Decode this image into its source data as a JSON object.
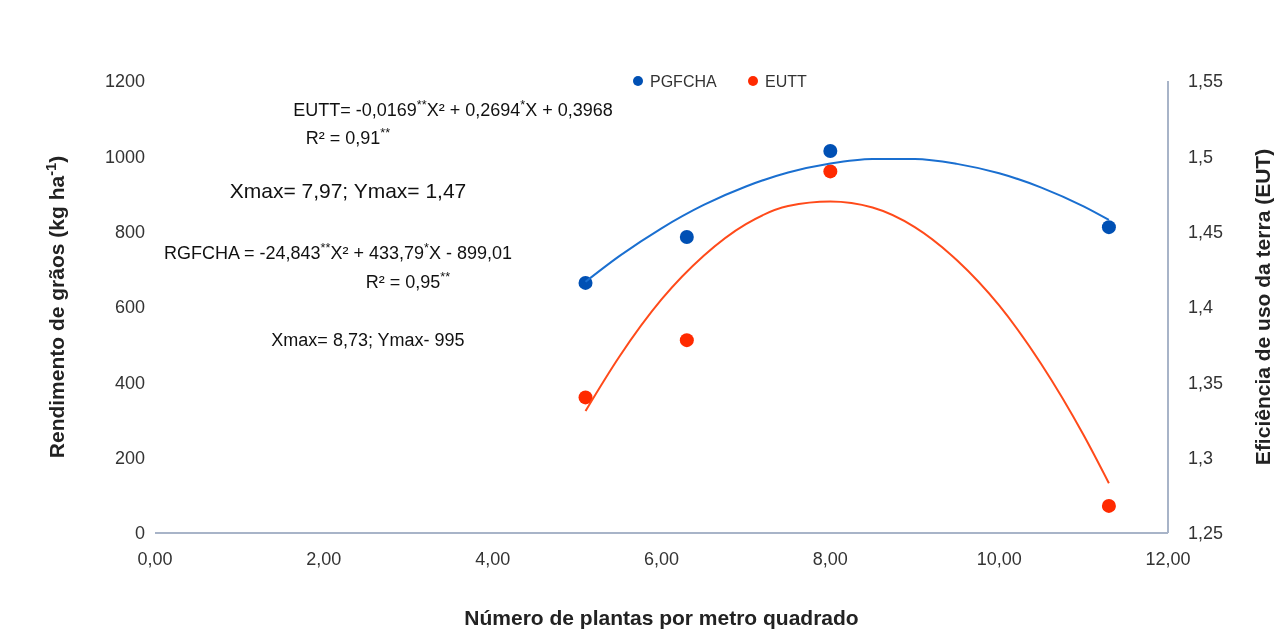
{
  "chart_data": {
    "type": "scatter",
    "xlabel": "Número de plantas por metro quadrado",
    "ylabel": "Rendimento de grãos (kg ha$^{-1}$)",
    "y2label": "Eficiência de uso da terra (EUT)",
    "xlim": [
      0,
      12
    ],
    "xticks": [
      {
        "value": 0,
        "label": "0,00"
      },
      {
        "value": 2,
        "label": "2,00"
      },
      {
        "value": 4,
        "label": "4,00"
      },
      {
        "value": 6,
        "label": "6,00"
      },
      {
        "value": 8,
        "label": "8,00"
      },
      {
        "value": 10,
        "label": "10,00"
      },
      {
        "value": 12,
        "label": "12,00"
      }
    ],
    "ylim": [
      0,
      1200
    ],
    "yticks": [
      0,
      200,
      400,
      600,
      800,
      1000,
      1200
    ],
    "y2lim": [
      1.25,
      1.55
    ],
    "y2ticks": [
      {
        "value": 1.25,
        "label": "1,25"
      },
      {
        "value": 1.3,
        "label": "1,3"
      },
      {
        "value": 1.35,
        "label": "1,35"
      },
      {
        "value": 1.4,
        "label": "1,4"
      },
      {
        "value": 1.45,
        "label": "1,45"
      },
      {
        "value": 1.5,
        "label": "1,5"
      },
      {
        "value": 1.55,
        "label": "1,55"
      }
    ],
    "marker": "circle",
    "legend": "top",
    "grid": false,
    "series": [
      {
        "name": "PGFCHA",
        "color": "#0050b4",
        "x": [
          5.1,
          6.3,
          8.0,
          11.3
        ],
        "values": [
          664,
          786,
          1014,
          812
        ]
      },
      {
        "name": "EUTT",
        "color": "#ff2a00",
        "axis": "y2",
        "x": [
          5.1,
          6.3,
          8.0,
          11.3
        ],
        "values": [
          1.34,
          1.378,
          1.49,
          1.268
        ]
      },
      {
        "type": "line",
        "marker": "none",
        "color": "#1a6fd0",
        "x": [
          5.1,
          5.5,
          6,
          6.5,
          7,
          7.5,
          8,
          8.5,
          9,
          9.5,
          10,
          10.5,
          11,
          11.3
        ],
        "values": [
          667,
          735,
          809,
          871,
          920,
          957,
          981,
          993,
          993,
          980,
          955,
          917,
          867,
          831
        ]
      },
      {
        "type": "line",
        "marker": "none",
        "color": "#ff4a1a",
        "axis": "y2",
        "x": [
          5.1,
          5.5,
          6,
          6.5,
          7,
          7.5,
          8,
          8.5,
          9,
          9.5,
          10,
          10.5,
          11,
          11.3
        ],
        "values": [
          1.331,
          1.367,
          1.405,
          1.434,
          1.455,
          1.467,
          1.47,
          1.466,
          1.453,
          1.431,
          1.401,
          1.362,
          1.315,
          1.283
        ]
      }
    ],
    "annotations": [
      "EUTT= -0,0169$^{**}$X² + 0,2694$^{*}$X + 0,3968",
      "R² = 0,91$^{**}$",
      "Xmax= 7,97; Ymax= 1,47",
      "RGFCHA = -24,843$^{**}$X² + 433,79$^{*}$X - 899,01",
      "R² = 0,95$^{**}$",
      "Xmax= 8,73; Ymax- 995"
    ]
  }
}
